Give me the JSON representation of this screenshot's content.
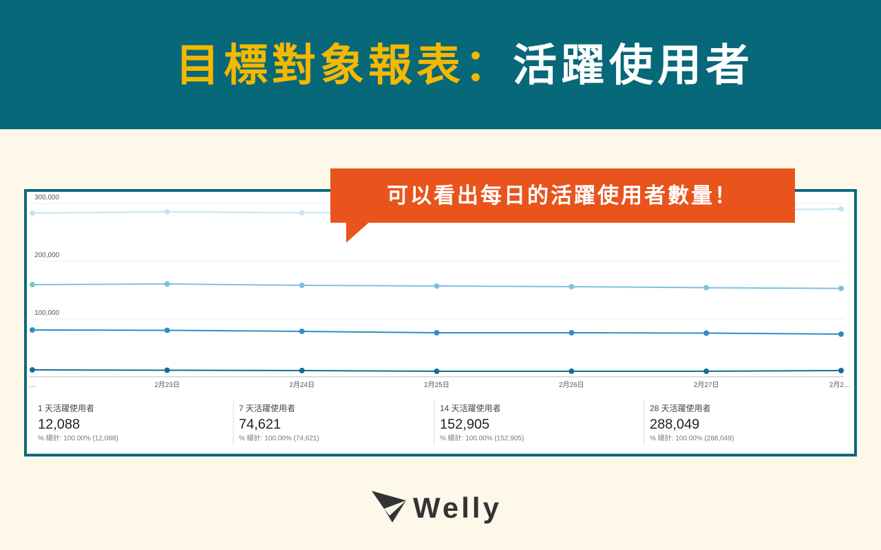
{
  "header": {
    "title_highlight": "目標對象報表：",
    "title_rest": "活躍使用者"
  },
  "callout": "可以看出每日的活躍使用者數量！",
  "chart_data": {
    "type": "line",
    "categories": [
      "…",
      "2月23日",
      "2月24日",
      "2月25日",
      "2月26日",
      "2月27日",
      "2月2…"
    ],
    "ylim": [
      0,
      300000
    ],
    "yticks": [
      {
        "value": 100000,
        "label": "100,000"
      },
      {
        "value": 200000,
        "label": "200,000"
      },
      {
        "value": 300000,
        "label": "300,000"
      }
    ],
    "grid": true,
    "series": [
      {
        "name": "1 天活躍使用者",
        "color": "#156d97",
        "values": [
          11900,
          11300,
          10700,
          9500,
          9500,
          9500,
          10700
        ]
      },
      {
        "name": "7 天活躍使用者",
        "color": "#2b8fc6",
        "values": [
          81000,
          80400,
          78600,
          76200,
          76200,
          75600,
          73800
        ]
      },
      {
        "name": "14 天活躍使用者",
        "color": "#7cc0e0",
        "values": [
          159500,
          160700,
          158300,
          157100,
          156000,
          154200,
          153000
        ]
      },
      {
        "name": "28 天活躍使用者",
        "color": "#c6e4f3",
        "values": [
          283300,
          285700,
          283900,
          286000,
          287000,
          288000,
          290500
        ]
      }
    ]
  },
  "summary": [
    {
      "value": "12,088",
      "note": "% 總計: 100.00% (12,088)"
    },
    {
      "value": "74,621",
      "note": "% 總計: 100.00% (74,621)"
    },
    {
      "value": "152,905",
      "note": "% 總計: 100.00% (152,905)"
    },
    {
      "value": "288,049",
      "note": "% 總計: 100.00% (288,049)"
    }
  ],
  "logo": "Welly"
}
